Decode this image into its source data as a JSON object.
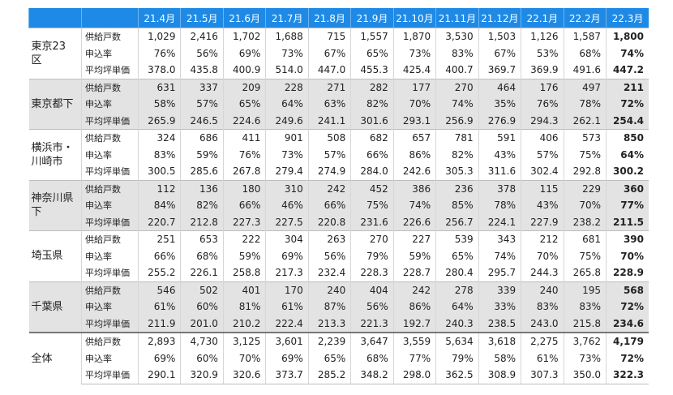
{
  "header": {
    "columns": [
      "21.4月",
      "21.5月",
      "21.6月",
      "21.7月",
      "21.8月",
      "21.9月",
      "21.10月",
      "21.11月",
      "21.12月",
      "22.1月",
      "22.2月",
      "22.3月"
    ]
  },
  "groups": [
    {
      "name": "東京23区",
      "rows": [
        {
          "label": "供給戸数",
          "cells": [
            "1,029",
            "2,416",
            "1,702",
            "1,688",
            "715",
            "1,557",
            "1,870",
            "3,530",
            "1,503",
            "1,126",
            "1,587",
            "1,800"
          ]
        },
        {
          "label": "申込率",
          "cells": [
            "76%",
            "56%",
            "69%",
            "73%",
            "67%",
            "65%",
            "73%",
            "83%",
            "67%",
            "53%",
            "68%",
            "74%"
          ]
        },
        {
          "label": "平均坪単価",
          "cells": [
            "378.0",
            "435.8",
            "400.9",
            "514.0",
            "447.0",
            "455.3",
            "425.4",
            "400.7",
            "369.7",
            "369.9",
            "491.6",
            "447.2"
          ]
        }
      ]
    },
    {
      "name": "東京都下",
      "rows": [
        {
          "label": "供給戸数",
          "cells": [
            "631",
            "337",
            "209",
            "228",
            "271",
            "282",
            "177",
            "270",
            "464",
            "176",
            "497",
            "211"
          ]
        },
        {
          "label": "申込率",
          "cells": [
            "58%",
            "57%",
            "65%",
            "64%",
            "63%",
            "82%",
            "70%",
            "74%",
            "35%",
            "76%",
            "78%",
            "72%"
          ]
        },
        {
          "label": "平均坪単価",
          "cells": [
            "265.9",
            "246.5",
            "224.6",
            "249.6",
            "241.1",
            "301.6",
            "293.1",
            "256.9",
            "276.9",
            "294.3",
            "262.1",
            "254.4"
          ]
        }
      ]
    },
    {
      "name": "横浜市・川崎市",
      "rows": [
        {
          "label": "供給戸数",
          "cells": [
            "324",
            "686",
            "411",
            "901",
            "508",
            "682",
            "657",
            "781",
            "591",
            "406",
            "573",
            "850"
          ]
        },
        {
          "label": "申込率",
          "cells": [
            "83%",
            "59%",
            "76%",
            "73%",
            "57%",
            "66%",
            "86%",
            "82%",
            "43%",
            "57%",
            "75%",
            "64%"
          ]
        },
        {
          "label": "平均坪単価",
          "cells": [
            "300.5",
            "285.6",
            "267.8",
            "279.4",
            "274.9",
            "284.0",
            "242.6",
            "305.3",
            "311.6",
            "302.4",
            "292.8",
            "300.2"
          ]
        }
      ]
    },
    {
      "name": "神奈川県下",
      "rows": [
        {
          "label": "供給戸数",
          "cells": [
            "112",
            "136",
            "180",
            "310",
            "242",
            "452",
            "386",
            "236",
            "378",
            "115",
            "229",
            "360"
          ]
        },
        {
          "label": "申込率",
          "cells": [
            "84%",
            "82%",
            "66%",
            "46%",
            "66%",
            "75%",
            "74%",
            "85%",
            "78%",
            "43%",
            "70%",
            "77%"
          ]
        },
        {
          "label": "平均坪単価",
          "cells": [
            "220.7",
            "212.8",
            "227.3",
            "227.5",
            "220.8",
            "231.6",
            "226.6",
            "256.7",
            "224.1",
            "227.9",
            "238.2",
            "211.5"
          ]
        }
      ]
    },
    {
      "name": "埼玉県",
      "rows": [
        {
          "label": "供給戸数",
          "cells": [
            "251",
            "653",
            "222",
            "304",
            "263",
            "270",
            "227",
            "539",
            "343",
            "212",
            "681",
            "390"
          ]
        },
        {
          "label": "申込率",
          "cells": [
            "66%",
            "68%",
            "59%",
            "69%",
            "56%",
            "79%",
            "59%",
            "65%",
            "74%",
            "70%",
            "75%",
            "70%"
          ]
        },
        {
          "label": "平均坪単価",
          "cells": [
            "255.2",
            "226.1",
            "258.8",
            "217.3",
            "232.4",
            "228.3",
            "228.7",
            "280.4",
            "295.7",
            "244.3",
            "265.8",
            "228.9"
          ]
        }
      ]
    },
    {
      "name": "千葉県",
      "rows": [
        {
          "label": "供給戸数",
          "cells": [
            "546",
            "502",
            "401",
            "170",
            "240",
            "404",
            "242",
            "278",
            "339",
            "240",
            "195",
            "568"
          ]
        },
        {
          "label": "申込率",
          "cells": [
            "61%",
            "60%",
            "81%",
            "61%",
            "87%",
            "56%",
            "86%",
            "64%",
            "33%",
            "83%",
            "83%",
            "72%"
          ]
        },
        {
          "label": "平均坪単価",
          "cells": [
            "211.9",
            "201.0",
            "210.2",
            "222.4",
            "213.3",
            "221.3",
            "192.7",
            "240.3",
            "238.5",
            "243.0",
            "215.8",
            "234.6"
          ]
        }
      ]
    },
    {
      "name": "全体",
      "rows": [
        {
          "label": "供給戸数",
          "cells": [
            "2,893",
            "4,730",
            "3,125",
            "3,601",
            "2,239",
            "3,647",
            "3,559",
            "5,634",
            "3,618",
            "2,275",
            "3,762",
            "4,179"
          ]
        },
        {
          "label": "申込率",
          "cells": [
            "69%",
            "60%",
            "70%",
            "69%",
            "65%",
            "68%",
            "77%",
            "79%",
            "58%",
            "61%",
            "73%",
            "72%"
          ]
        },
        {
          "label": "平均坪単価",
          "cells": [
            "290.1",
            "320.9",
            "320.6",
            "373.7",
            "285.2",
            "348.2",
            "298.0",
            "362.5",
            "308.9",
            "307.3",
            "350.0",
            "322.3"
          ]
        }
      ]
    }
  ]
}
